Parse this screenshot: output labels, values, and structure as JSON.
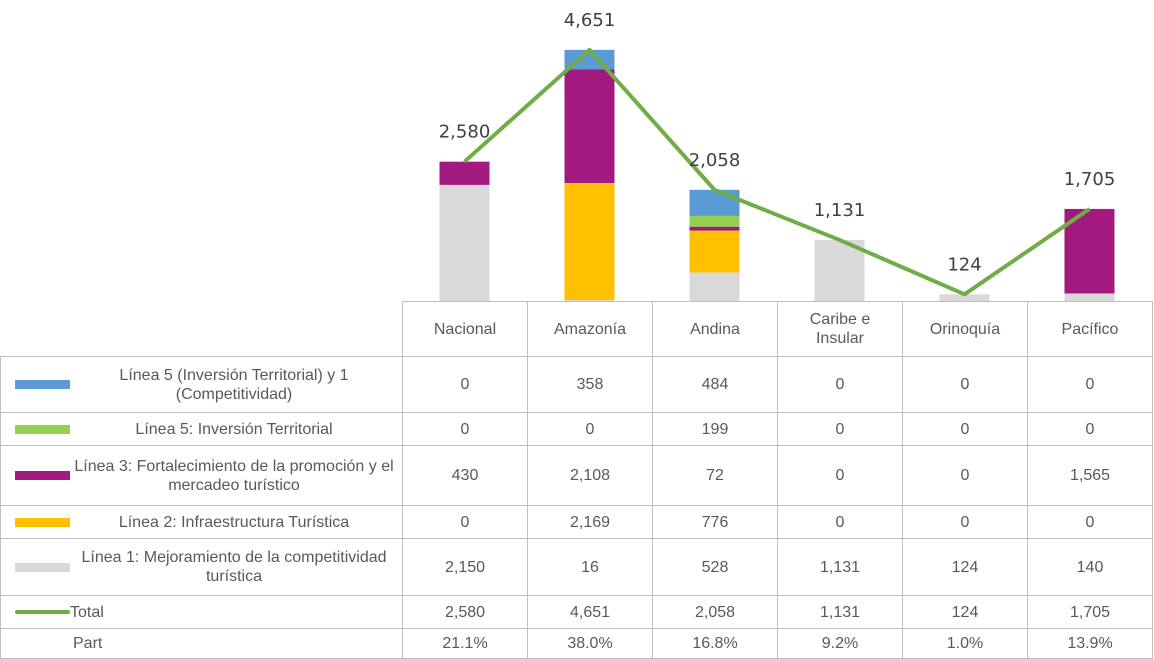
{
  "chart_data": {
    "type": "bar",
    "stacked": true,
    "categories": [
      "Nacional",
      "Amazonía",
      "Andina",
      "Caribe e Insular",
      "Orinoquía",
      "Pacífico"
    ],
    "series": [
      {
        "name": "Línea 5 (Inversión Territorial) y 1 (Competitividad)",
        "color": "#5b9bd5",
        "values": [
          0,
          358,
          484,
          0,
          0,
          0
        ],
        "value_labels": [
          "0",
          "358",
          "484",
          "0",
          "0",
          "0"
        ]
      },
      {
        "name": "Línea 5: Inversión Territorial",
        "color": "#92d050",
        "values": [
          0,
          0,
          199,
          0,
          0,
          0
        ],
        "value_labels": [
          "0",
          "0",
          "199",
          "0",
          "0",
          "0"
        ]
      },
      {
        "name": "Línea 3: Fortalecimiento de la promoción y el mercadeo turístico",
        "color": "#a2197f",
        "values": [
          430,
          2108,
          72,
          0,
          0,
          1565
        ],
        "value_labels": [
          "430",
          "2,108",
          "72",
          "0",
          "0",
          "1,565"
        ]
      },
      {
        "name": "Línea 2: Infraestructura Turística",
        "color": "#ffc000",
        "values": [
          0,
          2169,
          776,
          0,
          0,
          0
        ],
        "value_labels": [
          "0",
          "2,169",
          "776",
          "0",
          "0",
          "0"
        ]
      },
      {
        "name": "Línea 1: Mejoramiento de la competitividad turística",
        "color": "#d9d9d9",
        "values": [
          2150,
          16,
          528,
          1131,
          124,
          140
        ],
        "value_labels": [
          "2,150",
          "16",
          "528",
          "1,131",
          "124",
          "140"
        ]
      }
    ],
    "total": {
      "name": "Total",
      "type": "line",
      "color": "#70ad47",
      "values": [
        2580,
        4651,
        2058,
        1131,
        124,
        1705
      ],
      "value_labels": [
        "2,580",
        "4,651",
        "2,058",
        "1,131",
        "124",
        "1,705"
      ]
    },
    "share": {
      "name": "Part",
      "values": [
        21.1,
        38.0,
        16.8,
        9.2,
        1.0,
        13.9
      ],
      "value_labels": [
        "21.1%",
        "38.0%",
        "16.8%",
        "9.2%",
        "1.0%",
        "13.9%"
      ]
    },
    "ylim": [
      0,
      5000
    ]
  }
}
